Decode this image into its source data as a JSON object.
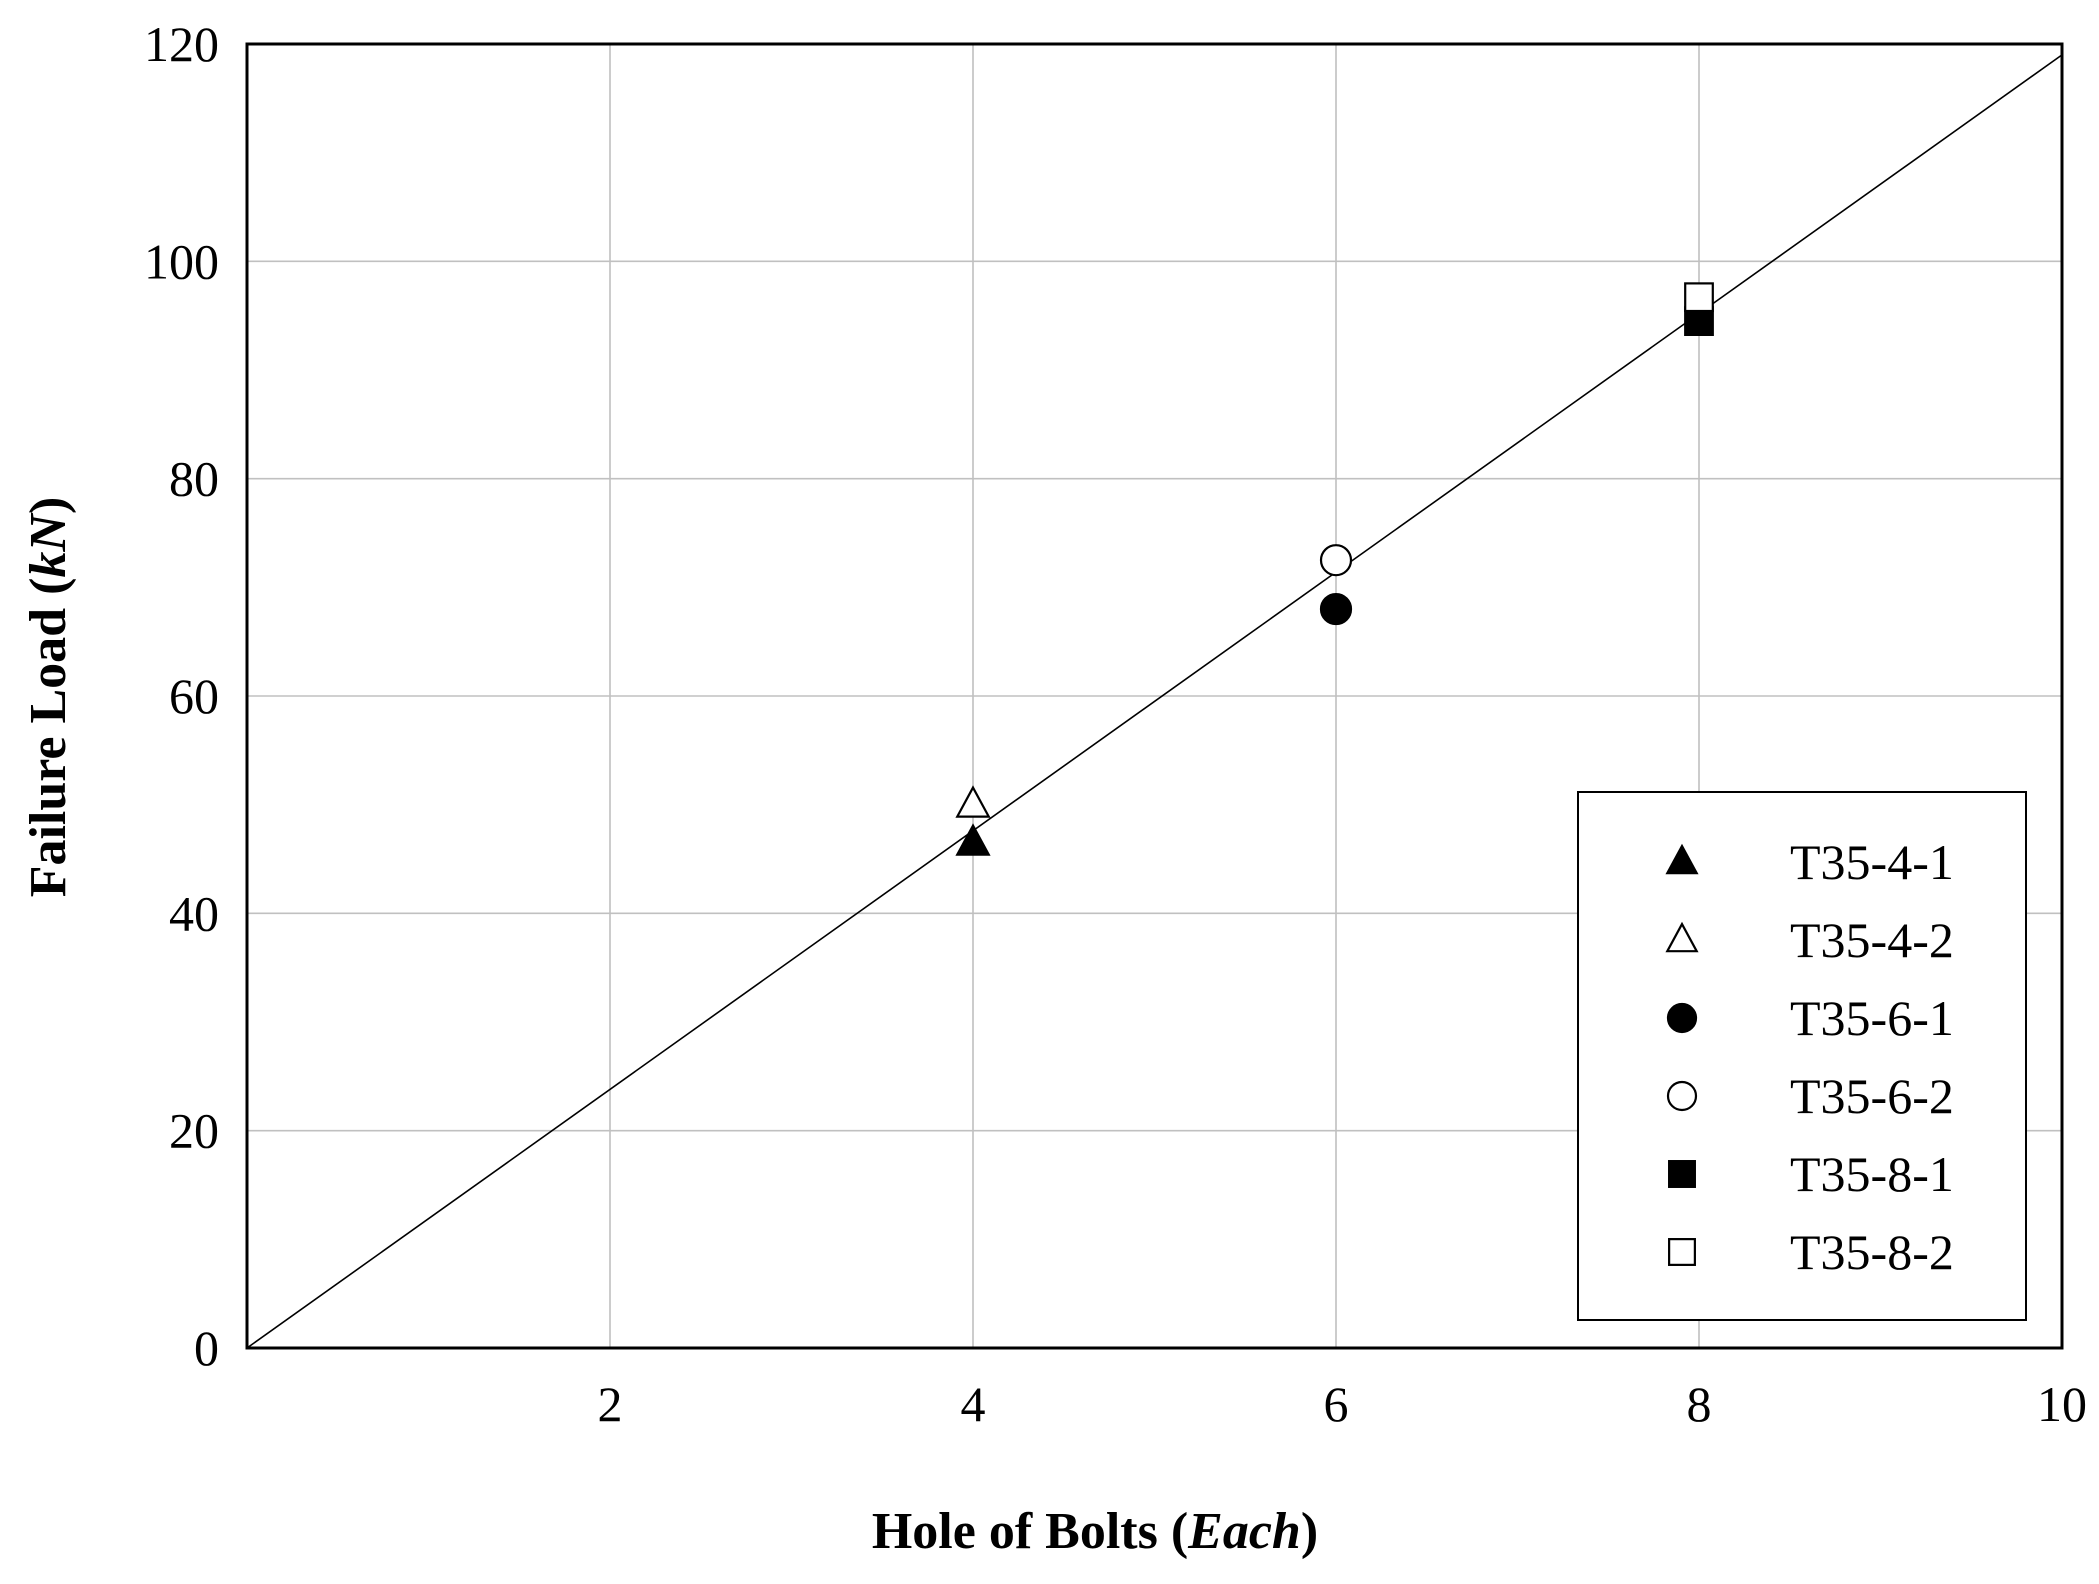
{
  "chart_data": {
    "type": "scatter",
    "xlabel": {
      "main": "Hole of Bolts (",
      "italic": "Each",
      "close": ")"
    },
    "ylabel": {
      "main": "Failure Load (",
      "italic": "kN",
      "close": ")"
    },
    "xlim": [
      0,
      10
    ],
    "ylim": [
      0,
      120
    ],
    "xticks": [
      2,
      4,
      6,
      8,
      10
    ],
    "yticks": [
      0,
      20,
      40,
      60,
      80,
      100,
      120
    ],
    "grid": true,
    "legend_position": "bottom-right",
    "series": [
      {
        "name": "T35-4-1",
        "marker": "triangle",
        "filled": true,
        "points": [
          [
            4,
            46.5
          ]
        ]
      },
      {
        "name": "T35-4-2",
        "marker": "triangle",
        "filled": false,
        "points": [
          [
            4,
            50
          ]
        ]
      },
      {
        "name": "T35-6-1",
        "marker": "circle",
        "filled": true,
        "points": [
          [
            6,
            68
          ]
        ]
      },
      {
        "name": "T35-6-2",
        "marker": "circle",
        "filled": false,
        "points": [
          [
            6,
            72.5
          ]
        ]
      },
      {
        "name": "T35-8-1",
        "marker": "square",
        "filled": true,
        "points": [
          [
            8,
            94.5
          ]
        ]
      },
      {
        "name": "T35-8-2",
        "marker": "square",
        "filled": false,
        "points": [
          [
            8,
            96.7
          ]
        ]
      }
    ],
    "fit_line": {
      "x": [
        0,
        10
      ],
      "y": [
        0,
        119
      ]
    },
    "colors": {
      "marker": "#000000",
      "grid": "#c0c0c0",
      "line": "#000000"
    }
  }
}
